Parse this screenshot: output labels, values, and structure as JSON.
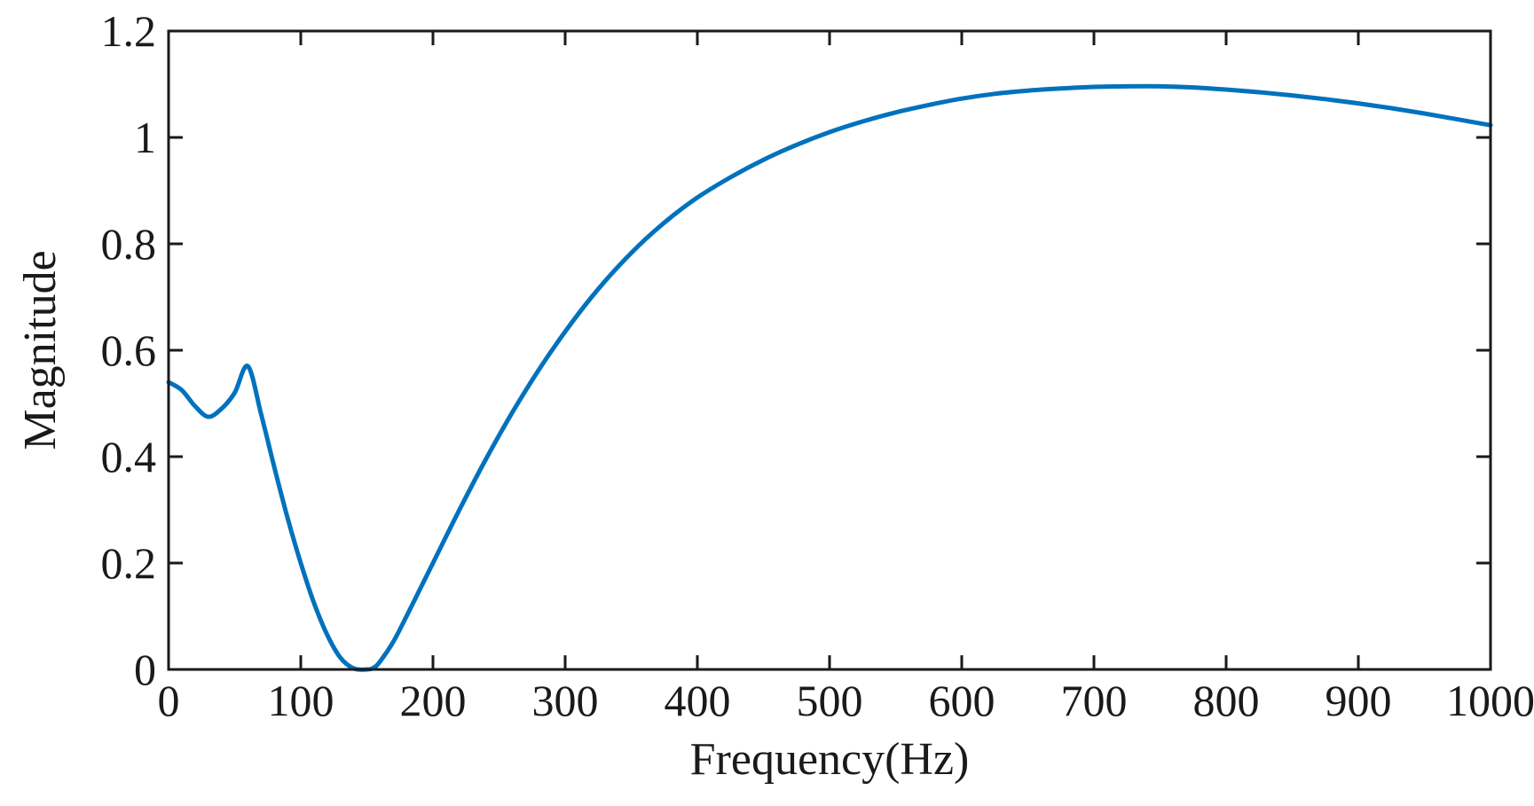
{
  "chart_data": {
    "type": "line",
    "xlabel": "Frequency(Hz)",
    "ylabel": "Magnitude",
    "xlim": [
      0,
      1000
    ],
    "ylim": [
      0,
      1.2
    ],
    "xticks": [
      0,
      100,
      200,
      300,
      400,
      500,
      600,
      700,
      800,
      900,
      1000
    ],
    "yticks": [
      0,
      0.2,
      0.4,
      0.6,
      0.8,
      1,
      1.2
    ],
    "xtick_labels": [
      "0",
      "100",
      "200",
      "300",
      "400",
      "500",
      "600",
      "700",
      "800",
      "900",
      "1000"
    ],
    "ytick_labels": [
      "0",
      "0.2",
      "0.4",
      "0.6",
      "0.8",
      "1",
      "1.2"
    ],
    "grid": false,
    "series": [
      {
        "color": "#0072BD",
        "x": [
          0,
          10,
          20,
          30,
          40,
          50,
          60,
          70,
          80,
          90,
          100,
          110,
          120,
          130,
          140,
          150,
          155,
          160,
          170,
          180,
          190,
          200,
          220,
          240,
          260,
          280,
          300,
          320,
          340,
          360,
          380,
          400,
          425,
          450,
          475,
          500,
          525,
          550,
          575,
          600,
          625,
          650,
          675,
          700,
          725,
          750,
          775,
          800,
          825,
          850,
          875,
          900,
          925,
          950,
          975,
          1000
        ],
        "y": [
          0.54,
          0.525,
          0.495,
          0.475,
          0.49,
          0.52,
          0.57,
          0.48,
          0.38,
          0.285,
          0.2,
          0.125,
          0.065,
          0.022,
          0.002,
          0.0,
          0.003,
          0.015,
          0.052,
          0.1,
          0.15,
          0.2,
          0.3,
          0.395,
          0.483,
          0.563,
          0.635,
          0.7,
          0.757,
          0.807,
          0.85,
          0.887,
          0.925,
          0.958,
          0.986,
          1.01,
          1.03,
          1.047,
          1.061,
          1.073,
          1.082,
          1.088,
          1.092,
          1.095,
          1.096,
          1.096,
          1.094,
          1.09,
          1.085,
          1.079,
          1.072,
          1.064,
          1.055,
          1.045,
          1.034,
          1.023
        ]
      }
    ]
  }
}
